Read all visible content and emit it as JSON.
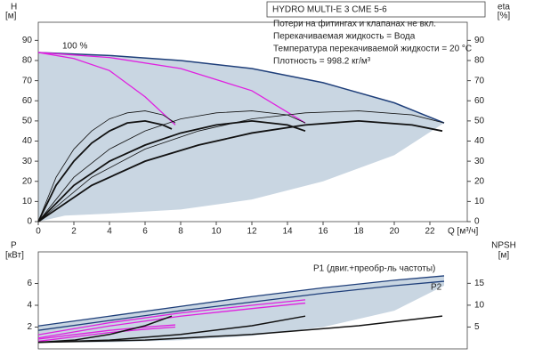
{
  "chart_data": [
    {
      "type": "line",
      "title": "HYDRO MULTI-E 3 CME 5-6",
      "notes": [
        "Потери на фитингах и клапанах не вкл.",
        "Перекачиваемая жидкость = Вода",
        "Температура перекачиваемой жидкости = 20 °C",
        "Плотность = 998.2 кг/м³"
      ],
      "annotations": [
        "100 %"
      ],
      "xlabel": "Q [м³/ч]",
      "ylabel": "H",
      "yunit": "[м]",
      "y2label": "eta",
      "y2unit": "[%]",
      "xlim": [
        0,
        24.1
      ],
      "xticks": [
        0,
        2,
        4,
        6,
        8,
        10,
        12,
        14,
        16,
        18,
        20,
        22
      ],
      "ylim": [
        0,
        99
      ],
      "yticks": [
        0,
        10,
        20,
        30,
        40,
        50,
        60,
        70,
        80,
        90
      ],
      "y2lim": [
        0,
        99
      ],
      "y2ticks": [
        0,
        10,
        20,
        30,
        40,
        50,
        60,
        70,
        80,
        90
      ],
      "band": {
        "color": "#c9d6e2",
        "x": [
          0,
          1.5,
          4,
          8,
          12,
          16,
          20,
          22.8
        ],
        "upper": [
          84,
          83.5,
          82.5,
          80,
          76,
          69,
          59,
          49
        ],
        "lower": [
          0,
          3,
          4,
          6,
          11,
          20,
          33,
          49
        ]
      },
      "series": [
        {
          "color": "#1f3f7a",
          "width": 1.5,
          "x": [
            0,
            4,
            8,
            12,
            16,
            20,
            22.8
          ],
          "values": [
            84,
            82.5,
            80,
            76,
            69,
            59,
            49
          ]
        },
        {
          "color": "#e020e0",
          "width": 1.3,
          "x": [
            0,
            2,
            4,
            6,
            7.7
          ],
          "values": [
            84,
            81,
            75,
            62,
            48
          ]
        },
        {
          "color": "#e020e0",
          "width": 1.3,
          "x": [
            0,
            4,
            8,
            12,
            15
          ],
          "values": [
            84,
            81.5,
            76,
            65,
            49
          ]
        },
        {
          "color": "#111111",
          "width": 1.8,
          "axis": "y2",
          "x": [
            0,
            1,
            2,
            3,
            4,
            5,
            6,
            7,
            7.5
          ],
          "values": [
            0,
            18,
            30,
            39,
            45,
            49,
            50,
            48,
            46
          ]
        },
        {
          "color": "#111111",
          "width": 1.8,
          "axis": "y2",
          "x": [
            0,
            2,
            4,
            6,
            8,
            10,
            12,
            14,
            15
          ],
          "values": [
            0,
            18,
            30,
            38,
            44,
            48,
            50,
            48,
            45
          ]
        },
        {
          "color": "#111111",
          "width": 1.8,
          "axis": "y2",
          "x": [
            0,
            3,
            6,
            9,
            12,
            15,
            18,
            21,
            22.7
          ],
          "values": [
            0,
            18,
            30,
            38,
            44,
            48,
            50,
            48,
            45
          ]
        },
        {
          "color": "#111111",
          "width": 0.8,
          "axis": "y2",
          "x": [
            0,
            1,
            2,
            3,
            4,
            5,
            6,
            7,
            7.7
          ],
          "values": [
            0,
            22,
            36,
            45,
            51,
            54,
            55,
            53,
            49
          ]
        },
        {
          "color": "#111111",
          "width": 0.8,
          "axis": "y2",
          "x": [
            0,
            2,
            4,
            6,
            8,
            10,
            12,
            14,
            15
          ],
          "values": [
            0,
            22,
            36,
            45,
            51,
            54,
            55,
            53,
            49
          ]
        },
        {
          "color": "#111111",
          "width": 0.8,
          "axis": "y2",
          "x": [
            0,
            3,
            6,
            9,
            12,
            15,
            18,
            21,
            22.8
          ],
          "values": [
            0,
            22,
            36,
            45,
            51,
            54,
            55,
            53,
            49
          ]
        }
      ]
    },
    {
      "type": "line",
      "annotations": [
        "P1 (двиг.+преобр-ль частоты)",
        "P2"
      ],
      "ylabel": "P",
      "yunit": "[кВт]",
      "y2label": "NPSH",
      "y2unit": "[м]",
      "xlim": [
        0,
        24.1
      ],
      "ylim": [
        0,
        8.9
      ],
      "yticks": [
        2,
        4,
        6
      ],
      "y2lim": [
        0,
        22.2
      ],
      "y2ticks": [
        5,
        10,
        15
      ],
      "band": {
        "color": "#c9d6e2",
        "x": [
          0,
          4,
          8,
          12,
          16,
          20,
          22.8
        ],
        "upper": [
          2.1,
          3.0,
          3.9,
          4.8,
          5.6,
          6.3,
          6.7
        ],
        "lower": [
          0.6,
          0.6,
          0.8,
          1.2,
          2.0,
          3.5,
          5.8
        ]
      },
      "series": [
        {
          "color": "#1f3f7a",
          "width": 1.3,
          "x": [
            0,
            4,
            8,
            12,
            16,
            20,
            22.8
          ],
          "values": [
            2.1,
            3.0,
            3.9,
            4.8,
            5.6,
            6.3,
            6.7
          ]
        },
        {
          "color": "#1f3f7a",
          "width": 1.3,
          "x": [
            0,
            4,
            8,
            12,
            16,
            20,
            22.8
          ],
          "values": [
            1.7,
            2.6,
            3.5,
            4.3,
            5.1,
            5.8,
            6.2
          ]
        },
        {
          "color": "#e020e0",
          "width": 1.3,
          "x": [
            0,
            4,
            8,
            12,
            15
          ],
          "values": [
            1.3,
            2.4,
            3.3,
            4.0,
            4.5
          ]
        },
        {
          "color": "#e020e0",
          "width": 1.3,
          "x": [
            0,
            4,
            8,
            12,
            15
          ],
          "values": [
            1.0,
            2.1,
            3.0,
            3.7,
            4.2
          ]
        },
        {
          "color": "#e020e0",
          "width": 1.3,
          "x": [
            0,
            2,
            4,
            6,
            7.7
          ],
          "values": [
            0.9,
            1.3,
            1.7,
            2.0,
            2.2
          ]
        },
        {
          "color": "#e020e0",
          "width": 1.3,
          "x": [
            0,
            2,
            4,
            6,
            7.7
          ],
          "values": [
            0.7,
            1.1,
            1.5,
            1.8,
            2.0
          ]
        },
        {
          "color": "#111111",
          "width": 1.5,
          "axis": "y2",
          "x": [
            0,
            2,
            4,
            6,
            7.5
          ],
          "values": [
            1.5,
            2,
            3.3,
            5.3,
            7.5
          ]
        },
        {
          "color": "#111111",
          "width": 1.5,
          "axis": "y2",
          "x": [
            0,
            4,
            8,
            12,
            15
          ],
          "values": [
            1.5,
            2,
            3.3,
            5.3,
            7.5
          ]
        },
        {
          "color": "#111111",
          "width": 1.5,
          "axis": "y2",
          "x": [
            0,
            6,
            12,
            18,
            22.7
          ],
          "values": [
            1.5,
            2,
            3.3,
            5.3,
            7.5
          ]
        }
      ]
    }
  ]
}
